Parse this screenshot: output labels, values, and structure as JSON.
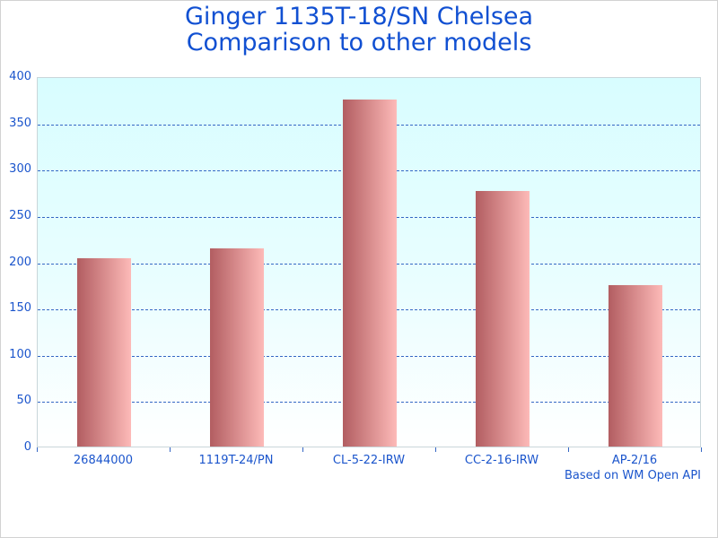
{
  "title": {
    "line1": "Ginger 1135T-18/SN Chelsea",
    "line2": "Comparison to other models"
  },
  "footer": {
    "note": "Based on WM Open API"
  },
  "colors": {
    "title_blue": "#1150d2",
    "axis_label_blue": "#1b55cc",
    "gridline_blue": "#3567c4",
    "bar_gradient_left": "#b25d61",
    "bar_gradient_right": "#fdbab8",
    "plot_bg_top": "#d8fdff",
    "plot_bg_bottom": "#ffffff",
    "plot_border": "#c9d6da",
    "frame_border": "#d2d2d2"
  },
  "chart_data": {
    "type": "bar",
    "title": "Ginger 1135T-18/SN Chelsea — Comparison to other models",
    "categories": [
      "26844000",
      "1119T-24/PN",
      "CL-5-22-IRW",
      "CC-2-16-IRW",
      "AP-2/16"
    ],
    "values": [
      203,
      214,
      375,
      276,
      174
    ],
    "xlabel": "",
    "ylabel": "",
    "ylim": [
      0,
      400
    ],
    "yticks": [
      0,
      50,
      100,
      150,
      200,
      250,
      300,
      350,
      400
    ],
    "grid": "horizontal-dashed",
    "legend": "none",
    "annotation": "Based on WM Open API"
  }
}
